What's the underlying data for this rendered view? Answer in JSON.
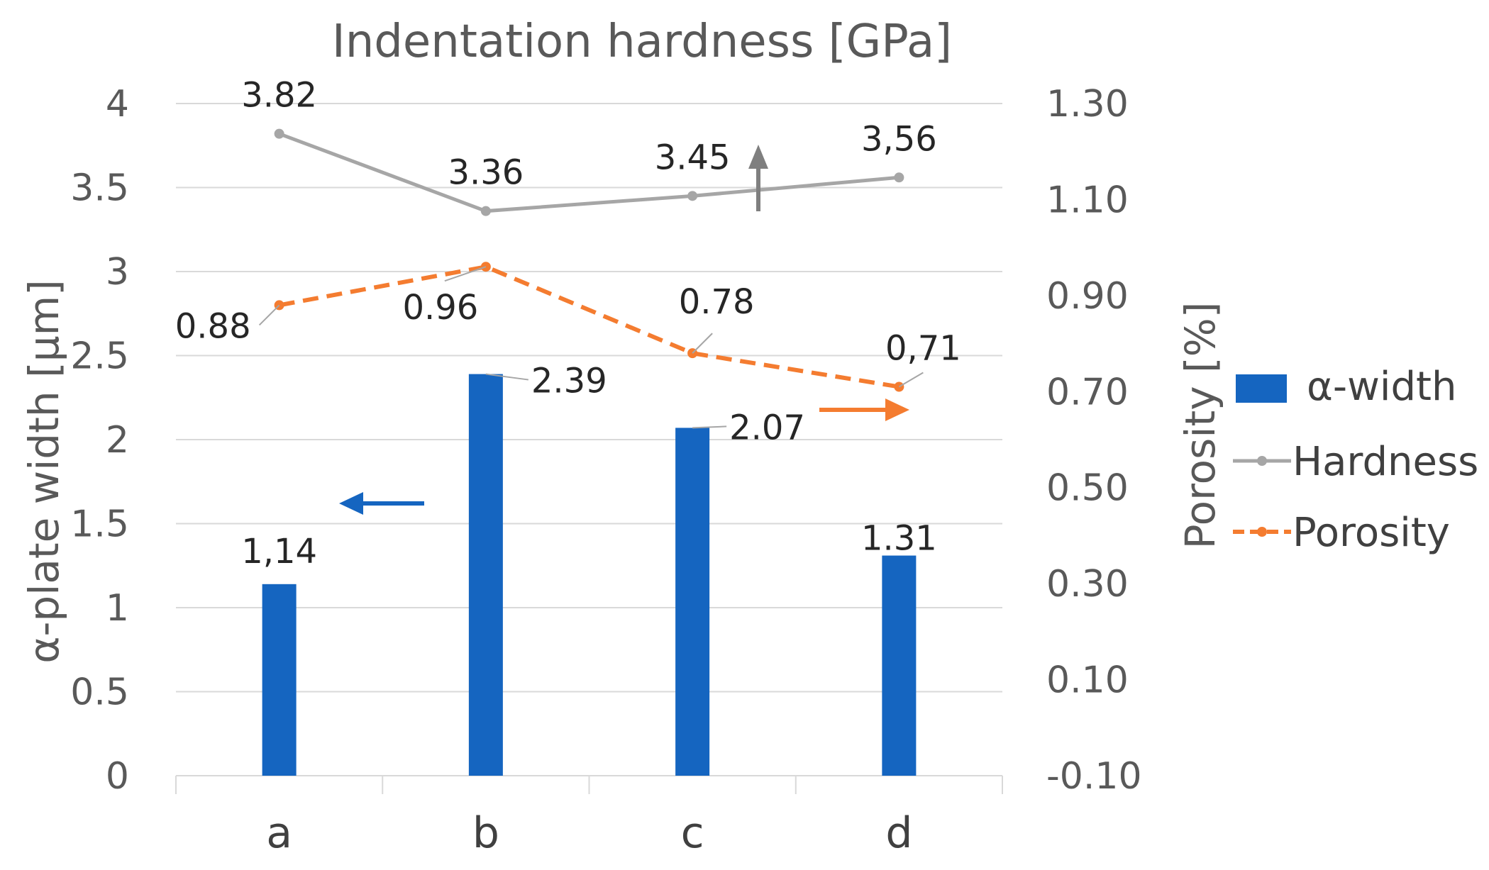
{
  "chart_data": {
    "type": "bar",
    "title": "Indentation hardness [GPa]",
    "categories": [
      "a",
      "b",
      "c",
      "d"
    ],
    "ylabel": "α-plate width [μm]",
    "y2label": "Porosity [%]",
    "ylim": [
      0,
      4
    ],
    "yticks": [
      "0",
      "0.5",
      "1",
      "1.5",
      "2",
      "2.5",
      "3",
      "3.5",
      "4"
    ],
    "y2lim": [
      -0.1,
      1.3
    ],
    "y2ticks": [
      "-0.10",
      "0.10",
      "0.30",
      "0.50",
      "0.70",
      "0.90",
      "1.10",
      "1.30"
    ],
    "grid": true,
    "legend_position": "right",
    "series": [
      {
        "name": "α-width",
        "kind": "bar",
        "axis": "left",
        "color": "#1565C0",
        "values": [
          1.14,
          2.39,
          2.07,
          1.31
        ],
        "labels": [
          "1,14",
          "2.39",
          "2.07",
          "1.31"
        ]
      },
      {
        "name": "Hardness",
        "kind": "line",
        "axis": "left",
        "color": "#A6A6A6",
        "values": [
          3.82,
          3.36,
          3.45,
          3.56
        ],
        "labels": [
          "3.82",
          "3.36",
          "3.45",
          "3,56"
        ]
      },
      {
        "name": "Porosity",
        "kind": "line-dashed",
        "axis": "right",
        "color": "#F47C30",
        "values": [
          0.88,
          0.96,
          0.78,
          0.71
        ],
        "labels": [
          "0.88",
          "0.96",
          "0.78",
          "0,71"
        ]
      }
    ],
    "annotations": [
      {
        "name": "bars-axis-arrow",
        "points_to": "left",
        "color": "#1565C0"
      },
      {
        "name": "porosity-axis-arrow",
        "points_to": "right",
        "color": "#F47C30"
      },
      {
        "name": "hardness-axis-arrow",
        "points_to": "up",
        "color": "#7F7F7F"
      }
    ]
  }
}
